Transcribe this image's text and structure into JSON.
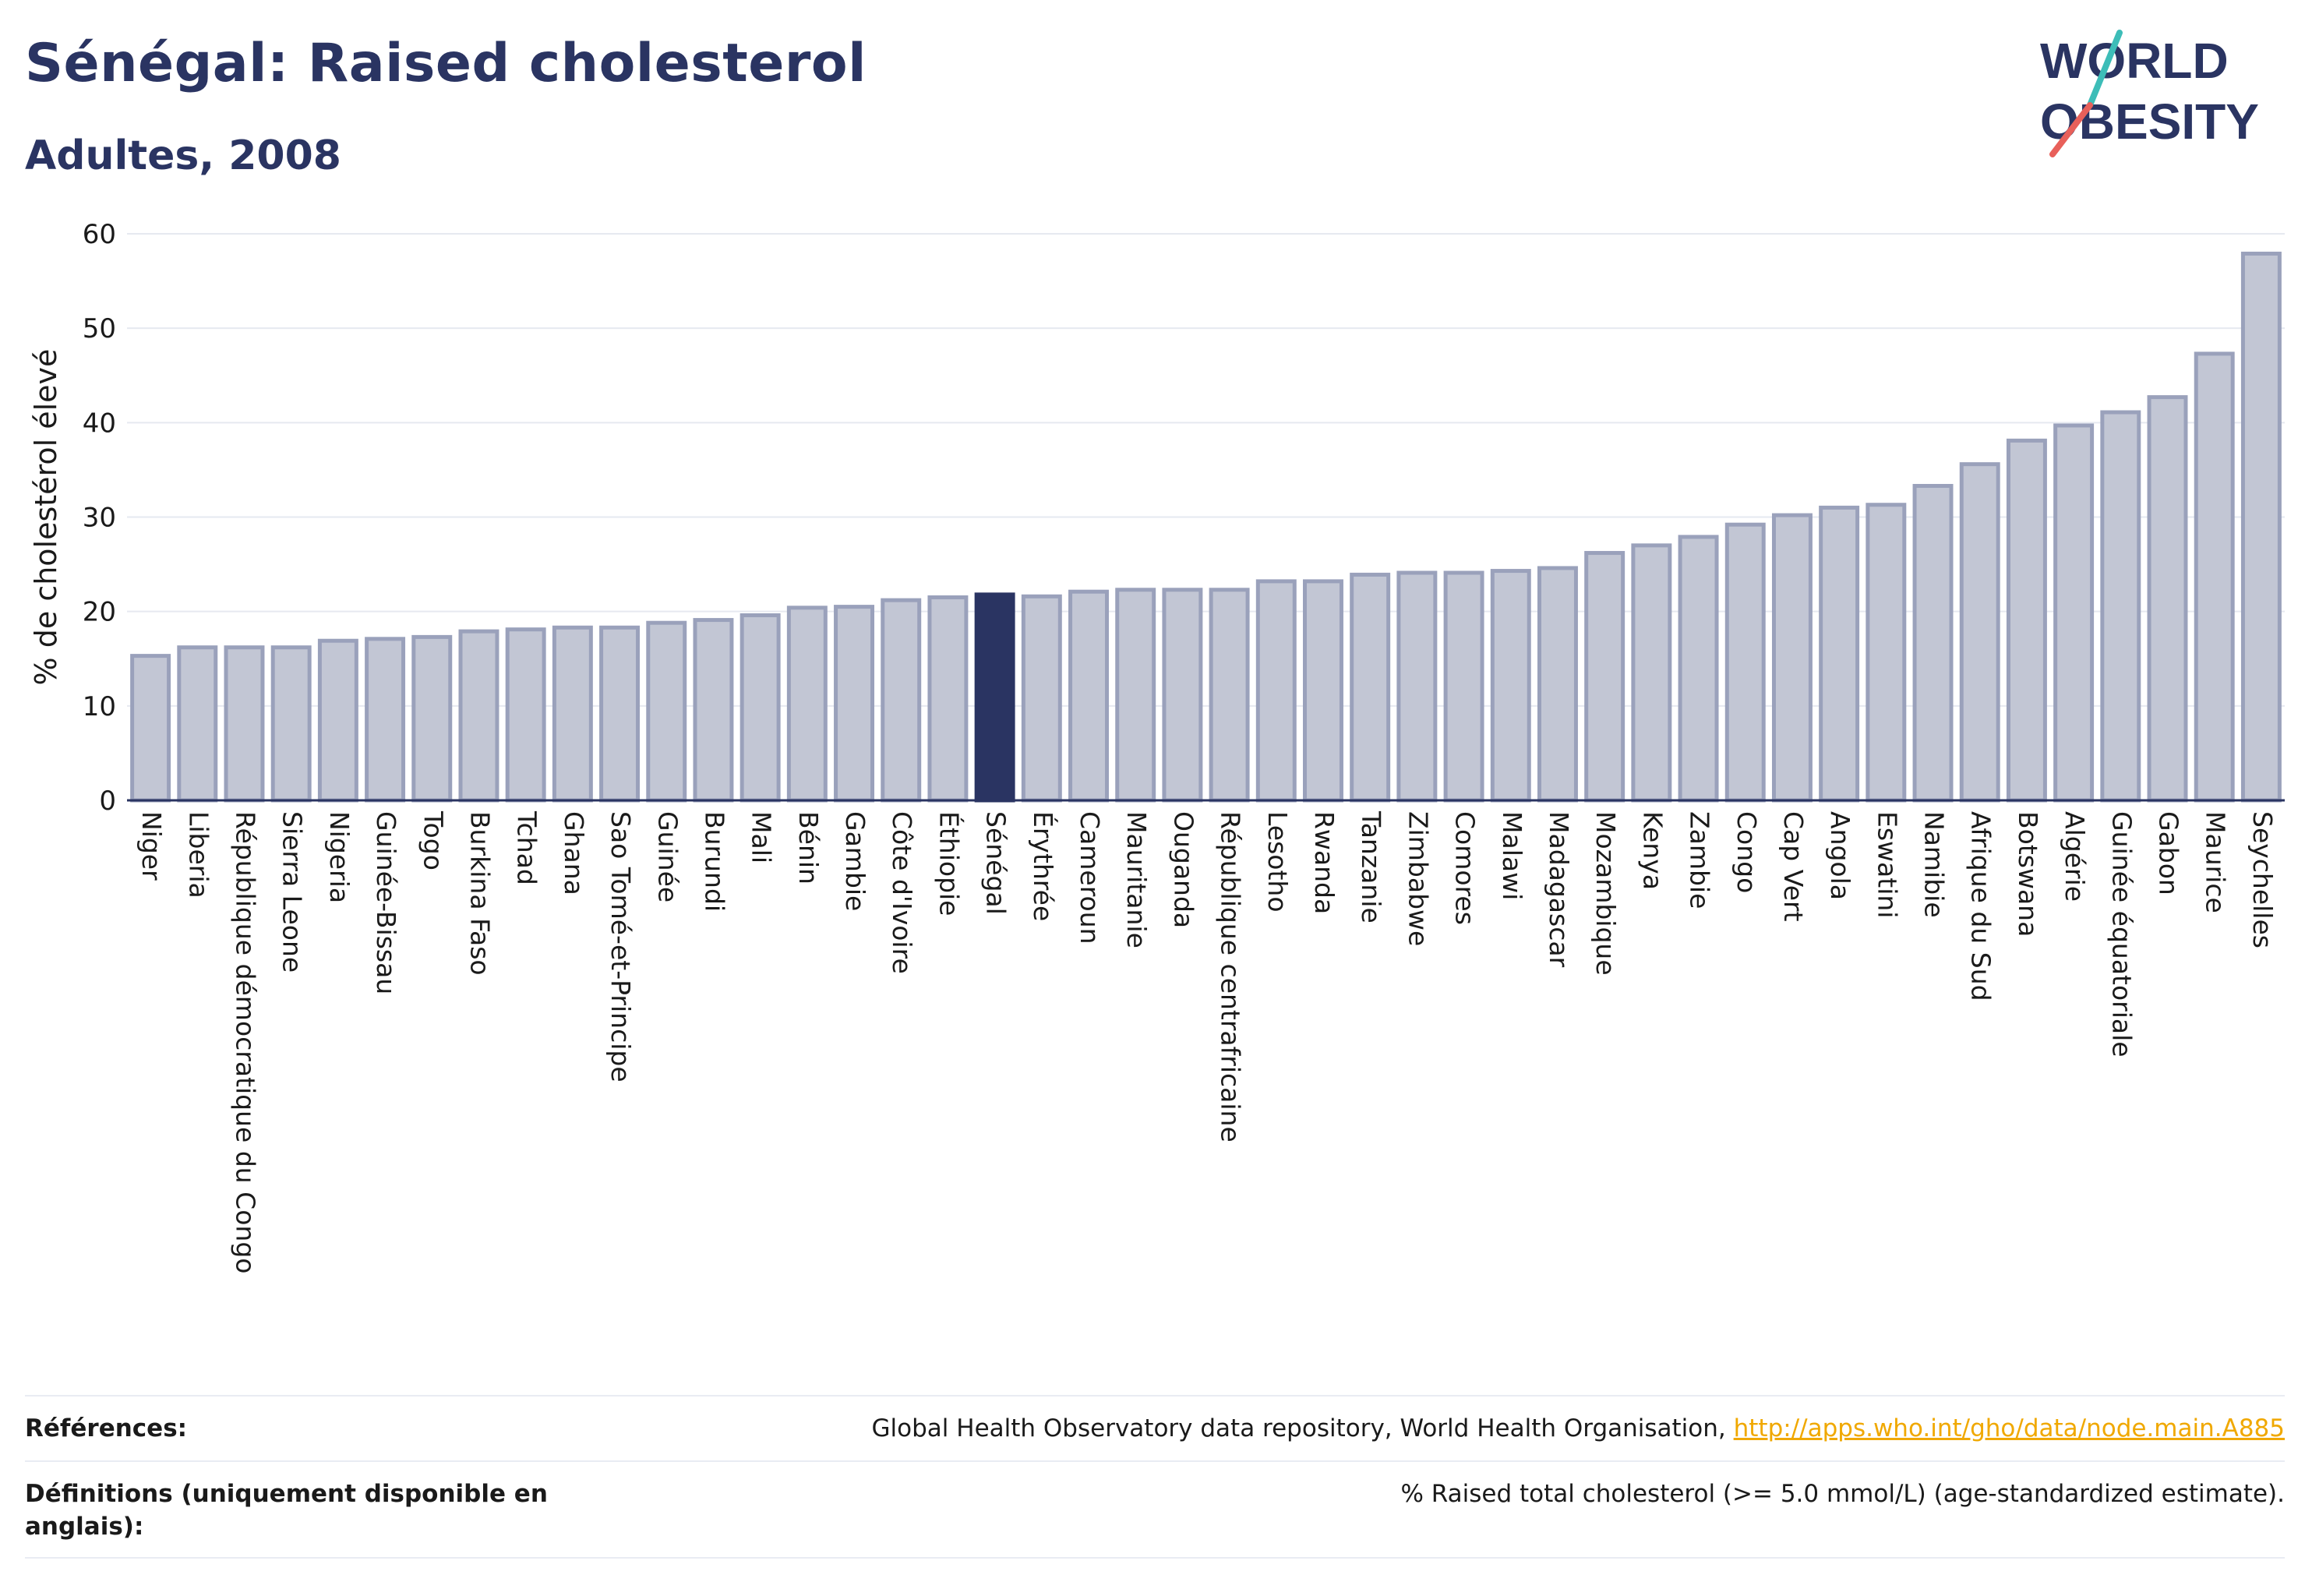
{
  "title": "Sénégal: Raised cholesterol",
  "subtitle": "Adultes, 2008",
  "logo": {
    "line1": "WORLD",
    "line2": "OBESITY"
  },
  "colors": {
    "highlight": "#2a3462",
    "bar_fill": "#c2c6d4",
    "bar_stroke": "#9aa1bb",
    "axis": "#2a3462",
    "grid": "#e6e9f0",
    "accent_red": "#e8605a",
    "accent_teal": "#3dbdb8",
    "link": "#f0a800"
  },
  "chart_data": {
    "type": "bar",
    "title": "Sénégal: Raised cholesterol",
    "subtitle": "Adultes, 2008",
    "ylabel": "% de cholestérol élevé",
    "ylim": [
      0,
      60
    ],
    "yticks": [
      0,
      10,
      20,
      30,
      40,
      50,
      60
    ],
    "grid": true,
    "highlight": "Sénégal",
    "categories": [
      "Niger",
      "Liberia",
      "République démocratique du Congo",
      "Sierra Leone",
      "Nigeria",
      "Guinée-Bissau",
      "Togo",
      "Burkina Faso",
      "Tchad",
      "Ghana",
      "Sao Tomé-et-Principe",
      "Guinée",
      "Burundi",
      "Mali",
      "Bénin",
      "Gambie",
      "Côte d'Ivoire",
      "Éthiopie",
      "Sénégal",
      "Érythrée",
      "Cameroun",
      "Mauritanie",
      "Ouganda",
      "République centrafricaine",
      "Lesotho",
      "Rwanda",
      "Tanzanie",
      "Zimbabwe",
      "Comores",
      "Malawi",
      "Madagascar",
      "Mozambique",
      "Kenya",
      "Zambie",
      "Congo",
      "Cap Vert",
      "Angola",
      "Eswatini",
      "Namibie",
      "Afrique du Sud",
      "Botswana",
      "Algérie",
      "Guinée équatoriale",
      "Gabon",
      "Maurice",
      "Seychelles"
    ],
    "values": [
      15.3,
      16.2,
      16.2,
      16.2,
      16.9,
      17.1,
      17.3,
      17.9,
      18.1,
      18.3,
      18.3,
      18.8,
      19.1,
      19.6,
      20.4,
      20.5,
      21.2,
      21.5,
      21.8,
      21.6,
      22.1,
      22.3,
      22.3,
      22.3,
      23.2,
      23.2,
      23.9,
      24.1,
      24.1,
      24.3,
      24.6,
      26.2,
      27.0,
      27.9,
      29.2,
      30.2,
      31.0,
      31.3,
      33.3,
      35.6,
      38.1,
      39.7,
      41.1,
      42.7,
      47.3,
      57.9
    ]
  },
  "footer": {
    "references_label": "Références:",
    "references_text": "Global Health Observatory data repository, World Health Organisation, ",
    "references_link": "http://apps.who.int/gho/data/node.main.A885",
    "definitions_label": "Définitions (uniquement disponible en anglais):",
    "definitions_text": "% Raised total cholesterol (>= 5.0 mmol/L) (age-standardized estimate)."
  }
}
